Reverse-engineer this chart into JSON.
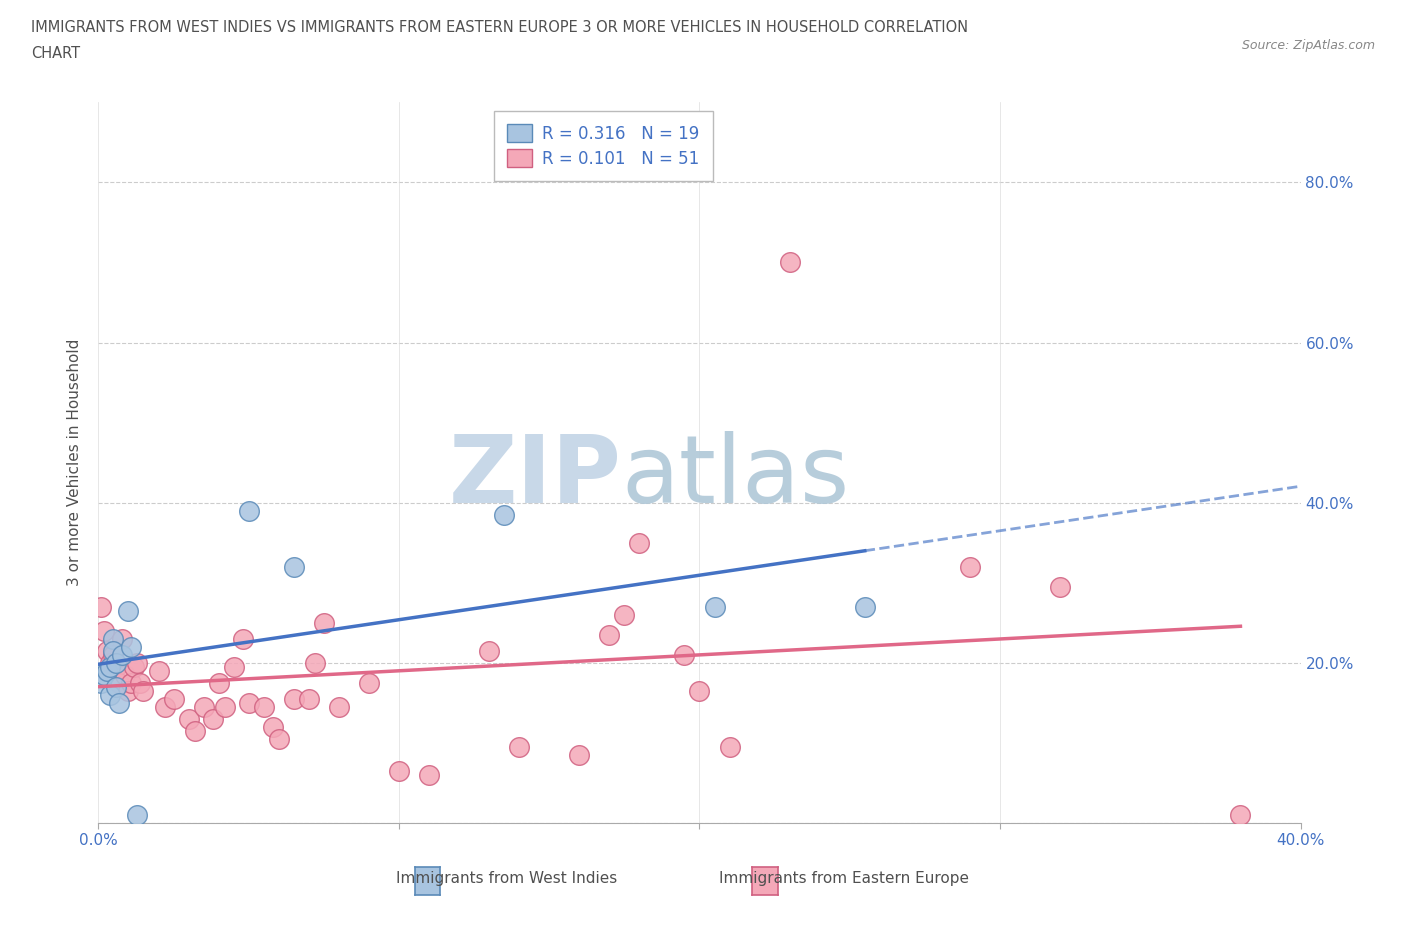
{
  "title_line1": "IMMIGRANTS FROM WEST INDIES VS IMMIGRANTS FROM EASTERN EUROPE 3 OR MORE VEHICLES IN HOUSEHOLD CORRELATION",
  "title_line2": "CHART",
  "source_text": "Source: ZipAtlas.com",
  "ylabel": "3 or more Vehicles in Household",
  "xlim": [
    0.0,
    0.4
  ],
  "ylim": [
    0.0,
    0.9
  ],
  "xticks": [
    0.0,
    0.1,
    0.2,
    0.3,
    0.4
  ],
  "yticks": [
    0.0,
    0.2,
    0.4,
    0.6,
    0.8
  ],
  "xtick_labels_shown": {
    "0.0": "0.0%",
    "0.40": "40.0%"
  },
  "ytick_labels": [
    "",
    "20.0%",
    "40.0%",
    "60.0%",
    "80.0%"
  ],
  "west_indies_color": "#a8c4e0",
  "eastern_europe_color": "#f4a8b8",
  "west_indies_edge": "#5a8ab8",
  "eastern_europe_edge": "#d06080",
  "trend_blue": "#4472c4",
  "trend_pink": "#e06888",
  "watermark_zip_color": "#c8d8e8",
  "watermark_atlas_color": "#b0c8d8",
  "r_west_indies": 0.316,
  "n_west_indies": 19,
  "r_eastern_europe": 0.101,
  "n_eastern_europe": 51,
  "west_indies_x": [
    0.001,
    0.002,
    0.003,
    0.004,
    0.004,
    0.005,
    0.005,
    0.006,
    0.006,
    0.007,
    0.008,
    0.01,
    0.011,
    0.013,
    0.05,
    0.065,
    0.135,
    0.205,
    0.255
  ],
  "west_indies_y": [
    0.175,
    0.185,
    0.19,
    0.195,
    0.16,
    0.23,
    0.215,
    0.2,
    0.17,
    0.15,
    0.21,
    0.265,
    0.22,
    0.01,
    0.39,
    0.32,
    0.385,
    0.27,
    0.27
  ],
  "eastern_europe_x": [
    0.001,
    0.002,
    0.003,
    0.004,
    0.005,
    0.006,
    0.007,
    0.008,
    0.009,
    0.01,
    0.011,
    0.012,
    0.013,
    0.014,
    0.015,
    0.02,
    0.022,
    0.025,
    0.03,
    0.032,
    0.035,
    0.038,
    0.04,
    0.042,
    0.045,
    0.048,
    0.05,
    0.055,
    0.058,
    0.06,
    0.065,
    0.07,
    0.072,
    0.075,
    0.08,
    0.09,
    0.1,
    0.11,
    0.13,
    0.14,
    0.16,
    0.17,
    0.175,
    0.18,
    0.195,
    0.2,
    0.21,
    0.23,
    0.29,
    0.32,
    0.38
  ],
  "eastern_europe_y": [
    0.27,
    0.24,
    0.215,
    0.2,
    0.21,
    0.195,
    0.175,
    0.23,
    0.185,
    0.165,
    0.175,
    0.195,
    0.2,
    0.175,
    0.165,
    0.19,
    0.145,
    0.155,
    0.13,
    0.115,
    0.145,
    0.13,
    0.175,
    0.145,
    0.195,
    0.23,
    0.15,
    0.145,
    0.12,
    0.105,
    0.155,
    0.155,
    0.2,
    0.25,
    0.145,
    0.175,
    0.065,
    0.06,
    0.215,
    0.095,
    0.085,
    0.235,
    0.26,
    0.35,
    0.21,
    0.165,
    0.095,
    0.7,
    0.32,
    0.295,
    0.01
  ],
  "background_color": "#ffffff",
  "grid_color": "#cccccc",
  "title_color": "#505050",
  "axis_color": "#505050",
  "tick_color": "#4472c4",
  "legend_text_color": "#4472c4"
}
